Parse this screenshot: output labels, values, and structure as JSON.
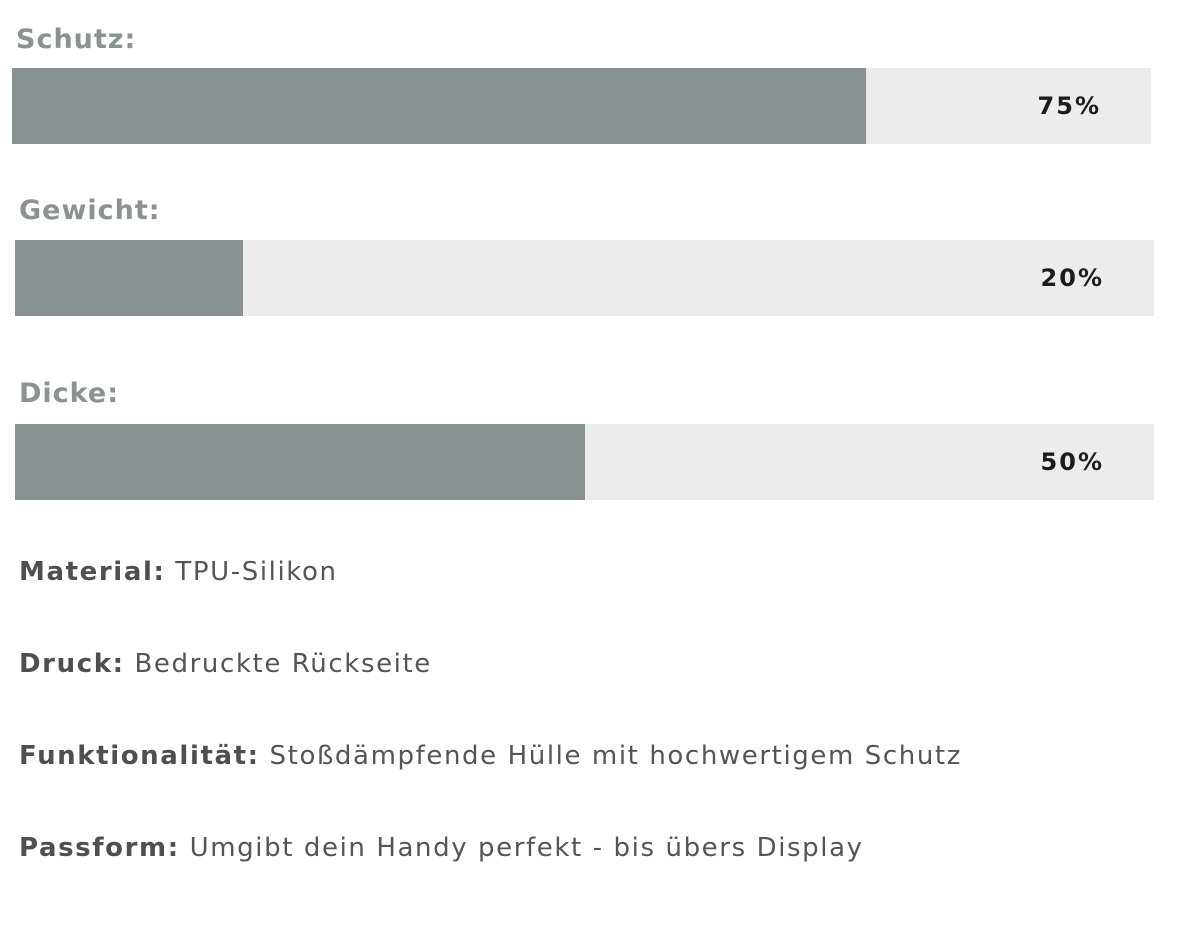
{
  "chart_data": {
    "type": "bar",
    "orientation": "horizontal",
    "categories": [
      "Schutz:",
      "Gewicht:",
      "Dicke:"
    ],
    "values": [
      75,
      20,
      50
    ],
    "value_labels": [
      "75%",
      "20%",
      "50%"
    ],
    "xlim": [
      0,
      100
    ],
    "colors": {
      "fill": "#889292",
      "track": "#ececec",
      "label": "#8a9292"
    }
  },
  "specs": [
    {
      "key": "Material:",
      "value": "TPU-Silikon"
    },
    {
      "key": "Druck:",
      "value": "Bedruckte Rückseite"
    },
    {
      "key": "Funktionalität:",
      "value": "Stoßdämpfende Hülle mit hochwertigem Schutz"
    },
    {
      "key": "Passform:",
      "value": "Umgibt dein Handy perfekt - bis übers Display"
    }
  ]
}
